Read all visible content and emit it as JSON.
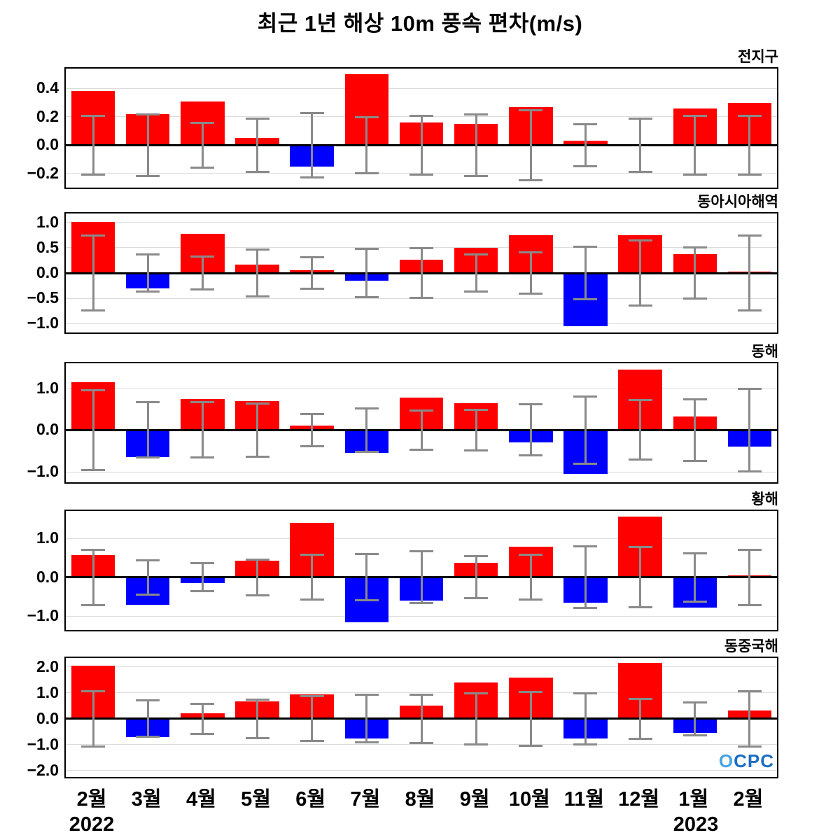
{
  "title": "최근 1년 해상 10m 풍속 편차(m/s)",
  "x_axis": {
    "year_left": "2022",
    "year_right": "2023"
  },
  "logo": "OCPC",
  "colors": {
    "positive": "#ff0000",
    "negative": "#0000ff",
    "error_bar": "#8a8a8a",
    "zero_line": "#000000",
    "grid": "#dcdcdc"
  },
  "chart_data": {
    "type": "bar",
    "title": "최근 1년 해상 10m 풍속 편차(m/s)",
    "ylabel": "풍속 편차 (m/s)",
    "categories": [
      "2월",
      "3월",
      "4월",
      "5월",
      "6월",
      "7월",
      "8월",
      "9월",
      "10월",
      "11월",
      "12월",
      "1월",
      "2월"
    ],
    "legend": "none",
    "grid": true,
    "error_bars_centered_at_zero": true,
    "panels": [
      {
        "title": "전지구",
        "values": [
          0.38,
          0.22,
          0.31,
          0.05,
          -0.15,
          0.5,
          0.16,
          0.15,
          0.27,
          0.03,
          -0.01,
          0.26,
          0.3
        ],
        "errors": [
          0.21,
          0.22,
          0.16,
          0.19,
          0.23,
          0.2,
          0.21,
          0.22,
          0.25,
          0.15,
          0.19,
          0.21,
          0.21
        ],
        "ticks": [
          -0.2,
          0.0,
          0.2,
          0.4
        ],
        "ylim": [
          -0.3,
          0.54
        ]
      },
      {
        "title": "동아시아해역",
        "values": [
          1.02,
          -0.3,
          0.78,
          0.17,
          0.06,
          -0.15,
          0.27,
          0.5,
          0.75,
          -1.05,
          0.75,
          0.37,
          0.03
        ],
        "errors": [
          0.75,
          0.38,
          0.33,
          0.47,
          0.32,
          0.48,
          0.5,
          0.37,
          0.42,
          0.53,
          0.65,
          0.52,
          0.75
        ],
        "ticks": [
          -1.0,
          -0.5,
          0.0,
          0.5,
          1.0
        ],
        "ylim": [
          -1.18,
          1.18
        ]
      },
      {
        "title": "동해",
        "values": [
          1.15,
          -0.65,
          0.75,
          0.7,
          0.1,
          -0.55,
          0.78,
          0.65,
          -0.3,
          -1.05,
          1.45,
          0.32,
          -0.4
        ],
        "errors": [
          0.97,
          0.67,
          0.67,
          0.65,
          0.4,
          0.53,
          0.48,
          0.5,
          0.62,
          0.82,
          0.72,
          0.75,
          1.0
        ],
        "ticks": [
          -1.0,
          0.0,
          1.0
        ],
        "ylim": [
          -1.25,
          1.6
        ]
      },
      {
        "title": "황해",
        "values": [
          0.57,
          -0.7,
          -0.15,
          0.42,
          1.4,
          -1.15,
          -0.6,
          0.37,
          0.78,
          -0.65,
          1.55,
          -0.78,
          0.05
        ],
        "errors": [
          0.72,
          0.45,
          0.37,
          0.47,
          0.58,
          0.6,
          0.67,
          0.55,
          0.58,
          0.8,
          0.78,
          0.63,
          0.72
        ],
        "ticks": [
          -1.0,
          0.0,
          1.0
        ],
        "ylim": [
          -1.35,
          1.7
        ]
      },
      {
        "title": "동중국해",
        "values": [
          2.05,
          -0.7,
          0.22,
          0.68,
          0.93,
          -0.75,
          0.52,
          1.4,
          1.6,
          -0.75,
          2.15,
          -0.55,
          0.32
        ],
        "errors": [
          1.08,
          0.72,
          0.6,
          0.75,
          0.88,
          0.93,
          0.95,
          1.0,
          1.05,
          1.0,
          0.78,
          0.65,
          1.08
        ],
        "ticks": [
          -2.0,
          -1.0,
          0.0,
          1.0,
          2.0
        ],
        "ylim": [
          -2.25,
          2.35
        ]
      }
    ]
  }
}
